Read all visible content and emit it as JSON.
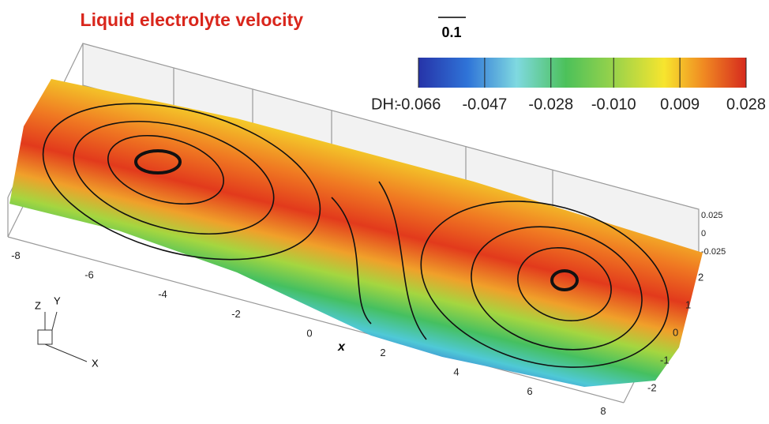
{
  "title": "Liquid electrolyte velocity",
  "reference_vector": 0.1,
  "colorbar": {
    "label": "DH:",
    "range": [
      -0.066,
      0.028
    ],
    "ticks": [
      -0.066,
      -0.047,
      -0.028,
      {
        "value": -0.01,
        "label": "-0.010"
      },
      0.009,
      0.028
    ]
  },
  "x_axis": {
    "label": "x",
    "ticks": [
      -8,
      -6,
      -4,
      -2,
      0,
      2,
      4,
      6,
      8
    ]
  },
  "y_axis": {
    "ticks": [
      2,
      1,
      0,
      -1,
      -2
    ]
  },
  "z_axis": {
    "ticks": [
      0.025,
      0,
      -0.025
    ]
  },
  "triad": {
    "x": "X",
    "y": "Y",
    "z": "Z"
  }
}
